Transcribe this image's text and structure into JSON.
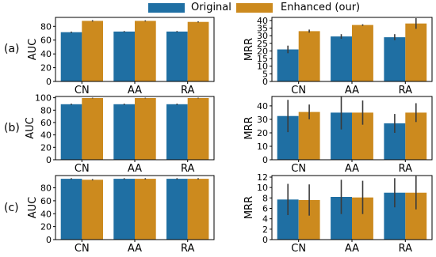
{
  "legend": {
    "items": [
      {
        "label": "Original",
        "color": "#1f6fa3"
      },
      {
        "label": "Enhanced (our)",
        "color": "#cc8a1e"
      }
    ]
  },
  "row_labels": [
    "(a)",
    "(b)",
    "(c)"
  ],
  "chart_data": [
    {
      "type": "bar",
      "row": "(a)",
      "ylabel": "AUC",
      "categories": [
        "CN",
        "AA",
        "RA"
      ],
      "series": [
        {
          "name": "Original",
          "values": [
            71.5,
            72.5,
            72.5
          ],
          "error": [
            1.0,
            0.8,
            0.8
          ]
        },
        {
          "name": "Enhanced (our)",
          "values": [
            88.0,
            88.0,
            86.5
          ],
          "error": [
            1.0,
            0.8,
            0.8
          ]
        }
      ],
      "ylim": [
        0,
        93
      ],
      "yticks": [
        0,
        20,
        40,
        60,
        80
      ],
      "grid": false
    },
    {
      "type": "bar",
      "row": "(a)",
      "ylabel": "MRR",
      "categories": [
        "CN",
        "AA",
        "RA"
      ],
      "series": [
        {
          "name": "Original",
          "values": [
            21.0,
            29.5,
            29.0
          ],
          "error": [
            2.5,
            1.5,
            2.0
          ]
        },
        {
          "name": "Enhanced (our)",
          "values": [
            33.0,
            37.0,
            38.0
          ],
          "error": [
            1.0,
            0.5,
            3.5
          ]
        }
      ],
      "ylim": [
        0,
        42
      ],
      "yticks": [
        0,
        5,
        10,
        15,
        20,
        25,
        30,
        35,
        40
      ],
      "grid": false
    },
    {
      "type": "bar",
      "row": "(b)",
      "ylabel": "AUC",
      "categories": [
        "CN",
        "AA",
        "RA"
      ],
      "series": [
        {
          "name": "Original",
          "values": [
            89.5,
            89.5,
            89.5
          ],
          "error": [
            1.0,
            1.0,
            1.0
          ]
        },
        {
          "name": "Enhanced (our)",
          "values": [
            99.5,
            99.5,
            99.5
          ],
          "error": [
            0.5,
            0.5,
            0.5
          ]
        }
      ],
      "ylim": [
        0,
        102
      ],
      "yticks": [
        0,
        20,
        40,
        60,
        80,
        100
      ],
      "grid": false
    },
    {
      "type": "bar",
      "row": "(b)",
      "ylabel": "MRR",
      "categories": [
        "CN",
        "AA",
        "RA"
      ],
      "series": [
        {
          "name": "Original",
          "values": [
            32.5,
            35.0,
            27.0
          ],
          "error": [
            12.0,
            12.5,
            7.0
          ]
        },
        {
          "name": "Enhanced (our)",
          "values": [
            35.5,
            35.0,
            35.0
          ],
          "error": [
            5.5,
            9.0,
            7.0
          ]
        }
      ],
      "ylim": [
        0,
        47
      ],
      "yticks": [
        0,
        10,
        20,
        30,
        40
      ],
      "grid": false
    },
    {
      "type": "bar",
      "row": "(c)",
      "ylabel": "AUC",
      "categories": [
        "CN",
        "AA",
        "RA"
      ],
      "series": [
        {
          "name": "Original",
          "values": [
            94.0,
            94.0,
            94.0
          ],
          "error": [
            1.0,
            1.0,
            1.0
          ]
        },
        {
          "name": "Enhanced (our)",
          "values": [
            92.5,
            94.0,
            94.0
          ],
          "error": [
            1.0,
            1.0,
            1.0
          ]
        }
      ],
      "ylim": [
        0,
        99
      ],
      "yticks": [
        0,
        20,
        40,
        60,
        80
      ],
      "grid": false
    },
    {
      "type": "bar",
      "row": "(c)",
      "ylabel": "MRR",
      "categories": [
        "CN",
        "AA",
        "RA"
      ],
      "series": [
        {
          "name": "Original",
          "values": [
            7.7,
            8.2,
            9.0
          ],
          "error": [
            3.0,
            3.3,
            2.8
          ]
        },
        {
          "name": "Enhanced (our)",
          "values": [
            7.6,
            8.1,
            9.0
          ],
          "error": [
            3.0,
            3.2,
            3.2
          ]
        }
      ],
      "ylim": [
        0,
        12.3
      ],
      "yticks": [
        0,
        2,
        4,
        6,
        8,
        10,
        12
      ],
      "grid": false
    }
  ]
}
